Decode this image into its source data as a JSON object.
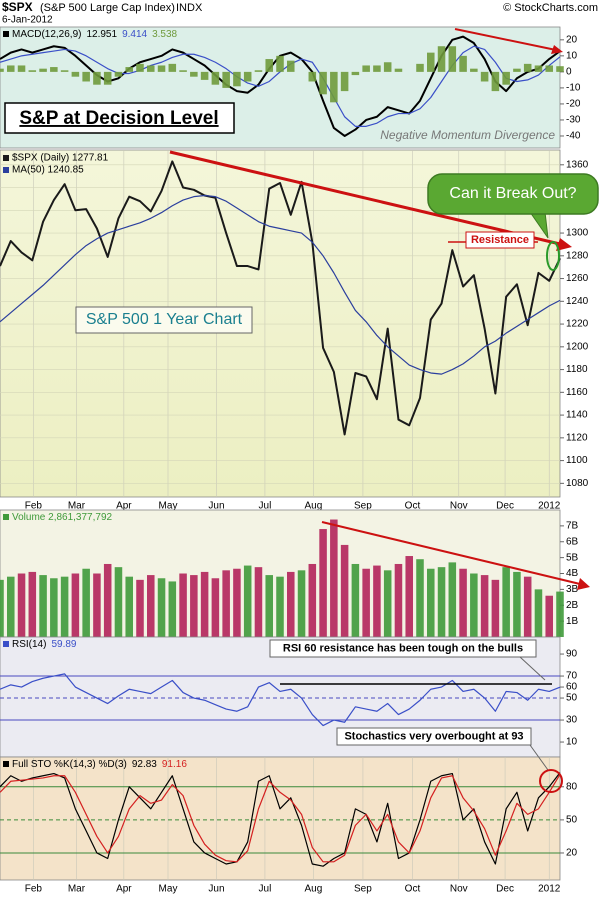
{
  "header": {
    "symbol": "$SPX",
    "name": "(S&P 500 Large Cap Index)",
    "exchange": "INDX",
    "date": "6-Jan-2012",
    "source": "© StockCharts.com",
    "headline": "S&P at Decision Level"
  },
  "chart_data": [
    {
      "type": "macd",
      "label": "MACD(12,26,9)",
      "xlim": [
        0,
        52
      ],
      "ylim": [
        -47.5,
        28
      ],
      "yticks": [
        20,
        10,
        0,
        -10,
        -20,
        -30,
        -40
      ],
      "annotations": [
        "Negative Momentum Divergence"
      ],
      "series": [
        {
          "name": "12.951",
          "type": "line",
          "color": "#000000",
          "values": [
            8,
            12,
            14,
            12,
            14,
            16,
            15,
            10,
            4,
            -2,
            -6,
            -4,
            2,
            6,
            8,
            10,
            14,
            12,
            8,
            4,
            -2,
            -8,
            -12,
            -13,
            -8,
            2,
            10,
            12,
            8,
            0,
            -18,
            -35,
            -40,
            -36,
            -30,
            -28,
            -22,
            -24,
            -26,
            -18,
            -4,
            10,
            20,
            22,
            18,
            8,
            -6,
            -12,
            -4,
            0,
            2,
            8,
            12.951
          ]
        },
        {
          "name": "9.414",
          "type": "line",
          "color": "#3a4fc8",
          "values": [
            6,
            8,
            10,
            11,
            12,
            13,
            14,
            13,
            10,
            6,
            2,
            -1,
            -1,
            1,
            4,
            6,
            9,
            11,
            11,
            9,
            6,
            2,
            -3,
            -7,
            -9,
            -6,
            0,
            5,
            8,
            6,
            -4,
            -16,
            -28,
            -34,
            -34,
            -32,
            -28,
            -26,
            -26,
            -23,
            -16,
            -6,
            4,
            12,
            16,
            14,
            6,
            -4,
            -6,
            -5,
            -2,
            4,
            9.414
          ]
        },
        {
          "name": "3.538",
          "type": "bar",
          "color": "#6f9a3c",
          "values": [
            2,
            4,
            4,
            1,
            2,
            3,
            1,
            -3,
            -6,
            -8,
            -8,
            -3,
            3,
            5,
            4,
            4,
            5,
            1,
            -3,
            -5,
            -8,
            -10,
            -9,
            -6,
            1,
            8,
            10,
            7,
            0,
            -6,
            -14,
            -19,
            -12,
            -2,
            4,
            4,
            6,
            2,
            0,
            5,
            12,
            16,
            16,
            10,
            2,
            -6,
            -12,
            -8,
            2,
            5,
            4,
            4,
            3.538
          ]
        }
      ]
    },
    {
      "type": "price",
      "xlim": [
        0,
        52
      ],
      "ylim": [
        1068,
        1373
      ],
      "yticks": [
        1360,
        1340,
        1320,
        1300,
        1280,
        1260,
        1240,
        1220,
        1200,
        1180,
        1160,
        1140,
        1120,
        1100,
        1080
      ],
      "xticks": [
        {
          "value": 3.1,
          "label": "Feb"
        },
        {
          "value": 7.1,
          "label": "Mar"
        },
        {
          "value": 11.5,
          "label": "Apr"
        },
        {
          "value": 15.6,
          "label": "May"
        },
        {
          "value": 20.1,
          "label": "Jun"
        },
        {
          "value": 24.6,
          "label": "Jul"
        },
        {
          "value": 29.1,
          "label": "Aug"
        },
        {
          "value": 33.7,
          "label": "Sep"
        },
        {
          "value": 38.3,
          "label": "Oct"
        },
        {
          "value": 42.6,
          "label": "Nov"
        },
        {
          "value": 46.9,
          "label": "Dec"
        },
        {
          "value": 51,
          "label": "2012"
        }
      ],
      "grid": true,
      "annotations": [
        "Can it Break Out?",
        "Resistance",
        "S&P 500 1 Year Chart"
      ],
      "series": [
        {
          "name": "$SPX (Daily) 1277.81",
          "type": "line",
          "color": "#1a1a1a",
          "values": [
            1271,
            1293,
            1283,
            1276,
            1310,
            1329,
            1343,
            1320,
            1321,
            1304,
            1279,
            1313,
            1332,
            1328,
            1319,
            1337,
            1363,
            1340,
            1338,
            1333,
            1331,
            1300,
            1271,
            1271,
            1268,
            1339,
            1344,
            1316,
            1345,
            1292,
            1199,
            1178,
            1123,
            1177,
            1174,
            1154,
            1216,
            1136,
            1131,
            1155,
            1224,
            1238,
            1285,
            1253,
            1263,
            1216,
            1159,
            1244,
            1255,
            1219,
            1265,
            1258,
            1277.81
          ]
        },
        {
          "name": "MA(50) 1240.85",
          "type": "line",
          "color": "#2b3f9e",
          "values": [
            1222,
            1230,
            1238,
            1246,
            1254,
            1263,
            1272,
            1281,
            1289,
            1295,
            1300,
            1303,
            1306,
            1309,
            1313,
            1318,
            1324,
            1329,
            1332,
            1333,
            1332,
            1328,
            1322,
            1316,
            1310,
            1306,
            1304,
            1302,
            1300,
            1292,
            1280,
            1265,
            1248,
            1232,
            1222,
            1210,
            1200,
            1192,
            1184,
            1180,
            1177,
            1176,
            1180,
            1185,
            1192,
            1200,
            1205,
            1212,
            1218,
            1224,
            1230,
            1236,
            1240.85
          ]
        }
      ]
    },
    {
      "type": "volume",
      "xlim": [
        0,
        52
      ],
      "ylim": [
        0,
        8
      ],
      "yticks": [
        {
          "value": 7,
          "label": "7B"
        },
        {
          "value": 6,
          "label": "6B"
        },
        {
          "value": 5,
          "label": "5B"
        },
        {
          "value": 4,
          "label": "4B"
        },
        {
          "value": 3,
          "label": "3B"
        },
        {
          "value": 2,
          "label": "2B"
        },
        {
          "value": 1,
          "label": "1B"
        }
      ],
      "up_color": "#3f9a3a",
      "down_color": "#b3245a",
      "series": [
        {
          "name": "Volume 2,861,377,792",
          "type": "bar",
          "color": "#3f9a3a",
          "values": [
            3.6,
            3.8,
            4.0,
            4.1,
            3.9,
            3.7,
            3.8,
            4.0,
            4.3,
            4.0,
            4.6,
            4.4,
            3.8,
            3.6,
            3.9,
            3.7,
            3.5,
            4.0,
            3.9,
            4.1,
            3.7,
            4.2,
            4.3,
            4.5,
            4.4,
            3.9,
            3.8,
            4.1,
            4.2,
            4.6,
            6.8,
            7.4,
            5.8,
            4.6,
            4.3,
            4.5,
            4.2,
            4.6,
            5.1,
            4.9,
            4.3,
            4.4,
            4.7,
            4.3,
            4.0,
            3.9,
            3.6,
            4.4,
            4.1,
            3.8,
            3.0,
            2.6,
            2.861377792
          ]
        }
      ]
    },
    {
      "type": "rsi",
      "label": "RSI(14)",
      "xlim": [
        0,
        52
      ],
      "ylim": [
        -3.6,
        105.5
      ],
      "yticks": [
        90,
        70,
        60,
        50,
        30,
        10
      ],
      "ref_lines": [
        70,
        50,
        30
      ],
      "annotations": [
        "RSI 60 resistance has been tough on the bulls"
      ],
      "series": [
        {
          "name": "59.89",
          "type": "line",
          "color": "#3a4fc8",
          "values": [
            58,
            62,
            60,
            65,
            68,
            70,
            72,
            60,
            55,
            50,
            45,
            52,
            58,
            56,
            54,
            60,
            66,
            55,
            50,
            48,
            44,
            40,
            38,
            42,
            60,
            64,
            56,
            58,
            50,
            35,
            25,
            30,
            28,
            42,
            40,
            38,
            45,
            35,
            40,
            48,
            58,
            60,
            66,
            56,
            58,
            50,
            38,
            56,
            55,
            48,
            58,
            56,
            59.89
          ]
        }
      ]
    },
    {
      "type": "sto",
      "label": "Full STO %K(14,3) %D(3)",
      "xlim": [
        0,
        52
      ],
      "ylim": [
        -4.5,
        107
      ],
      "yticks": [
        80,
        50,
        20
      ],
      "ref_lines": [
        80,
        50,
        20
      ],
      "xticks": [
        {
          "value": 3.1,
          "label": "Feb"
        },
        {
          "value": 7.1,
          "label": "Mar"
        },
        {
          "value": 11.5,
          "label": "Apr"
        },
        {
          "value": 15.6,
          "label": "May"
        },
        {
          "value": 20.1,
          "label": "Jun"
        },
        {
          "value": 24.6,
          "label": "Jul"
        },
        {
          "value": 29.1,
          "label": "Aug"
        },
        {
          "value": 33.7,
          "label": "Sep"
        },
        {
          "value": 38.3,
          "label": "Oct"
        },
        {
          "value": 42.6,
          "label": "Nov"
        },
        {
          "value": 46.9,
          "label": "Dec"
        },
        {
          "value": 51,
          "label": "2012"
        }
      ],
      "annotations": [
        "Stochastics very overbought at 93"
      ],
      "series": [
        {
          "name": "92.83",
          "type": "line",
          "color": "#000000",
          "values": [
            80,
            90,
            85,
            88,
            90,
            92,
            88,
            60,
            40,
            20,
            15,
            50,
            80,
            70,
            60,
            75,
            90,
            60,
            30,
            20,
            15,
            10,
            12,
            30,
            85,
            90,
            60,
            70,
            45,
            10,
            8,
            15,
            20,
            60,
            55,
            30,
            65,
            15,
            20,
            50,
            85,
            90,
            92,
            50,
            60,
            30,
            10,
            60,
            75,
            40,
            70,
            80,
            92.83
          ]
        },
        {
          "name": "91.16",
          "type": "line",
          "color": "#d42020",
          "values": [
            75,
            85,
            86,
            87,
            88,
            90,
            90,
            75,
            55,
            35,
            20,
            35,
            60,
            72,
            65,
            68,
            82,
            72,
            45,
            28,
            18,
            13,
            12,
            22,
            60,
            85,
            75,
            68,
            55,
            25,
            12,
            12,
            18,
            45,
            55,
            40,
            55,
            30,
            20,
            40,
            70,
            88,
            90,
            70,
            58,
            42,
            18,
            40,
            65,
            55,
            60,
            75,
            91.16
          ]
        }
      ]
    }
  ]
}
